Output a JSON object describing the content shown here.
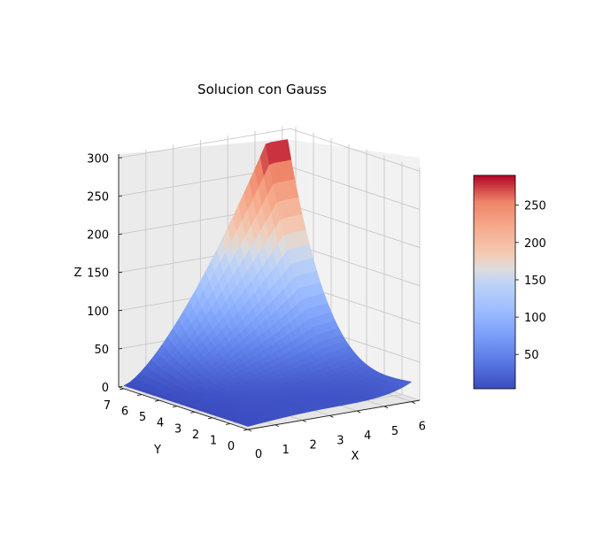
{
  "chart_data": {
    "type": "surface",
    "title": "Solucion con Gauss",
    "xlabel": "X",
    "ylabel": "Y",
    "zlabel": "Z",
    "x_ticks": [
      "0",
      "1",
      "2",
      "3",
      "4",
      "5",
      "6"
    ],
    "y_ticks": [
      "0",
      "1",
      "2",
      "3",
      "4",
      "5",
      "6",
      "7"
    ],
    "z_ticks": [
      "0",
      "50",
      "100",
      "150",
      "200",
      "250",
      "300"
    ],
    "xlim": [
      0,
      6.3
    ],
    "ylim": [
      0,
      7.3
    ],
    "zlim": [
      0,
      305
    ],
    "colormap": "coolwarm",
    "colorbar": {
      "range": [
        4,
        290
      ],
      "ticks": [
        "50",
        "100",
        "150",
        "200",
        "250"
      ],
      "tick_values": [
        50,
        100,
        150,
        200,
        250
      ]
    },
    "grid": true,
    "surface_description_values": {
      "max_z": 290,
      "min_z": 4
    }
  },
  "colors": {
    "cold": "#3b4cc0",
    "neutral": "#dddddd",
    "hot": "#b40426",
    "pane": "#f2f2f2",
    "grid": "#cccccc"
  }
}
